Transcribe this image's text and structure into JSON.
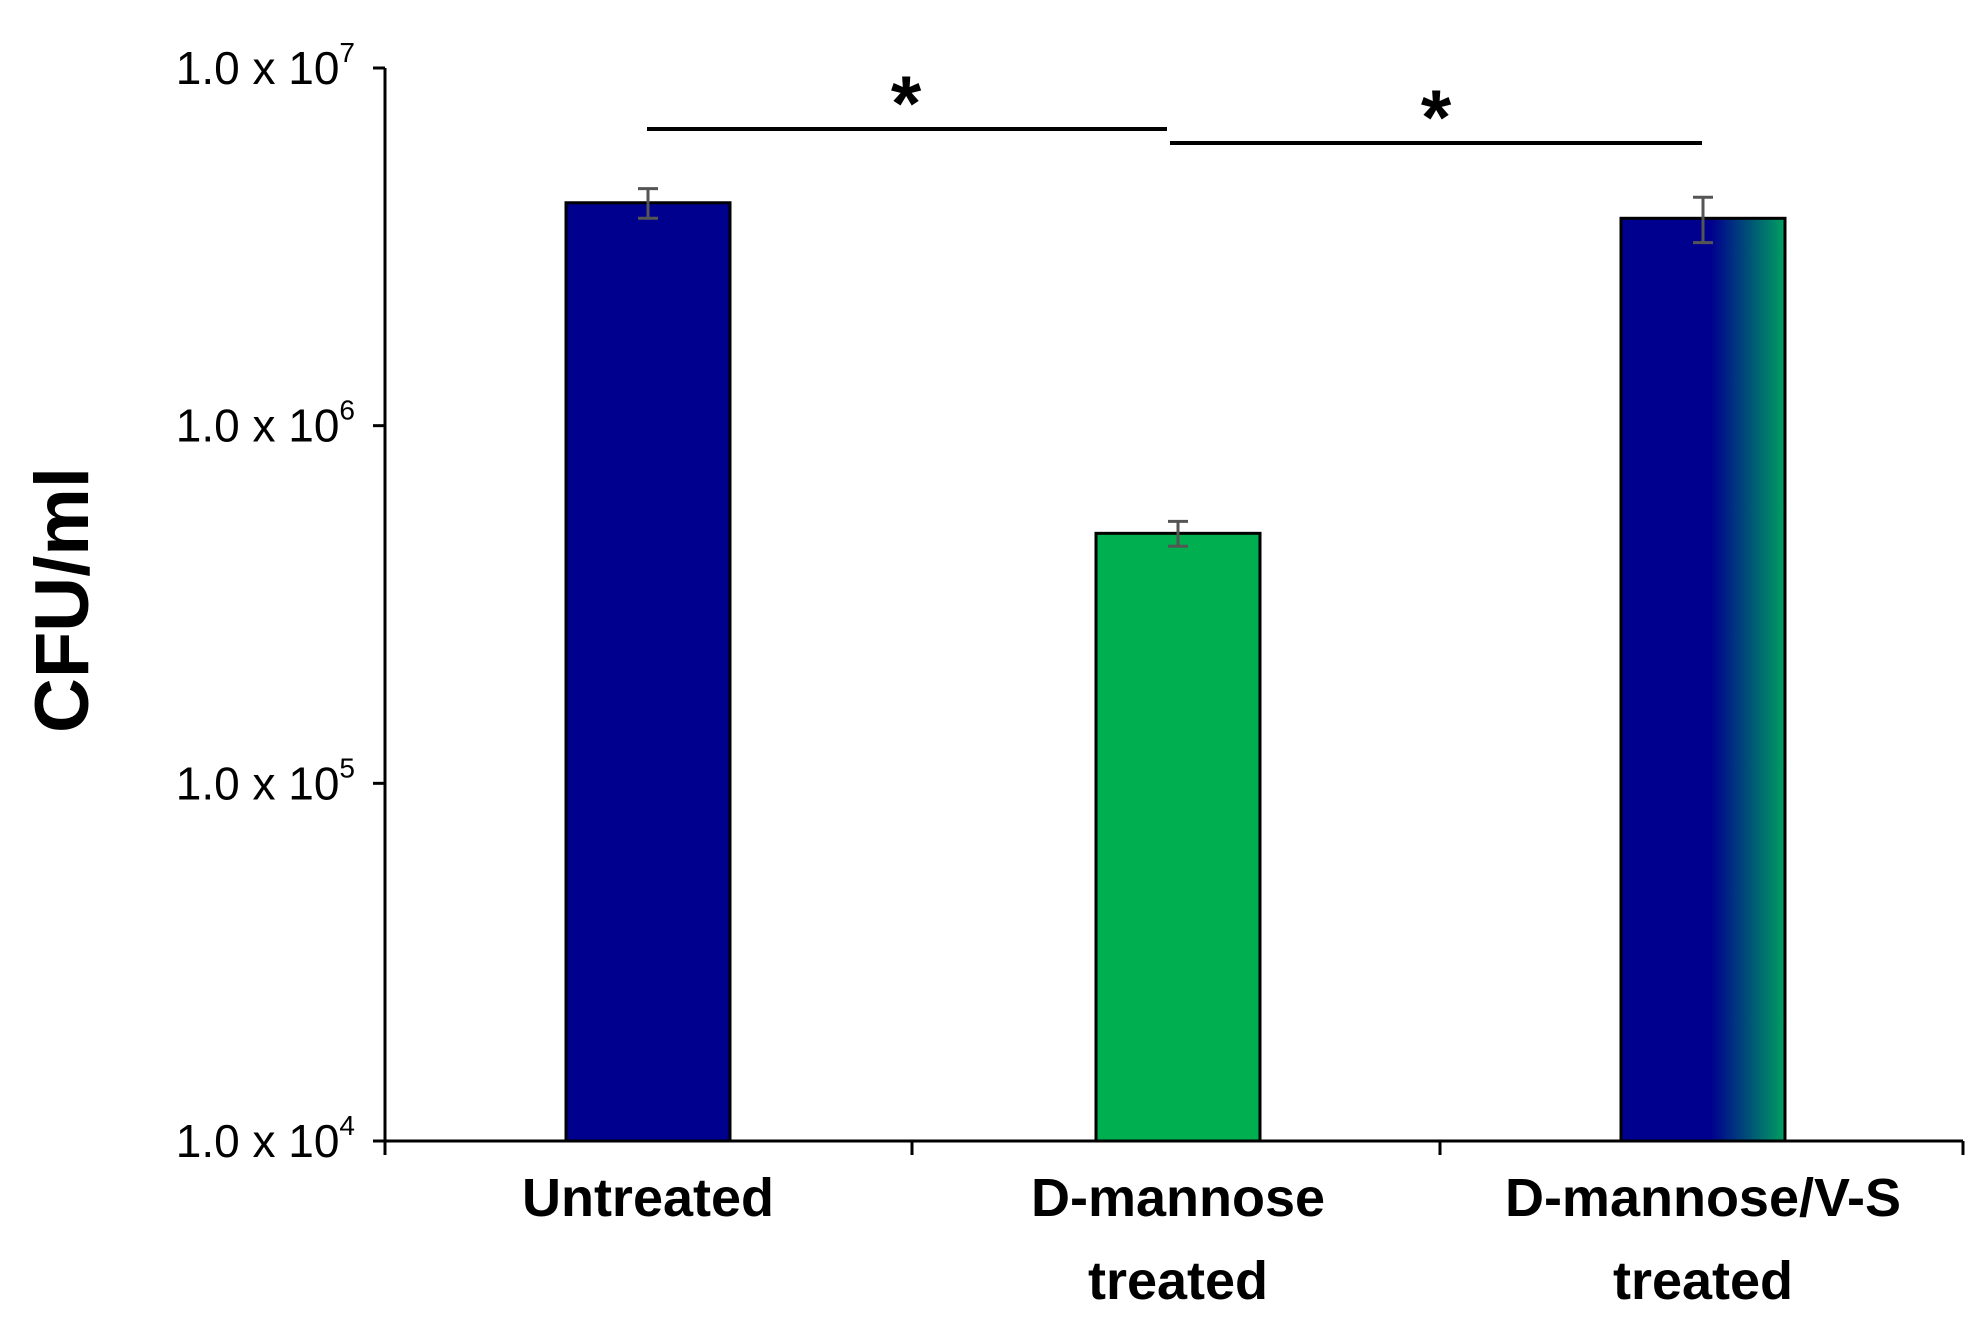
{
  "chart_data": {
    "type": "bar",
    "yscale": "log",
    "ylabel": "CFU/ml",
    "ylim": [
      10000,
      10000000
    ],
    "yticks": [
      {
        "value": 10000,
        "mantissa": "1.0 x 10",
        "exponent": "4"
      },
      {
        "value": 100000,
        "mantissa": "1.0 x 10",
        "exponent": "5"
      },
      {
        "value": 1000000,
        "mantissa": "1.0 x 10",
        "exponent": "6"
      },
      {
        "value": 10000000,
        "mantissa": "1.0 x 10",
        "exponent": "7"
      }
    ],
    "categories": [
      {
        "lines": [
          "Untreated"
        ]
      },
      {
        "lines": [
          "D-mannose",
          "treated"
        ]
      },
      {
        "lines": [
          "D-mannose/V-S",
          "treated"
        ]
      }
    ],
    "values": [
      4200000,
      500000,
      3800000
    ],
    "errors": [
      400000,
      40000,
      550000
    ],
    "fills": [
      {
        "type": "solid",
        "color": "#00008f"
      },
      {
        "type": "solid",
        "color": "#00b050"
      },
      {
        "type": "gradient",
        "from": "#00008f",
        "to": "#00a060"
      }
    ],
    "bar_border": "#000000",
    "error_bar_color": "#555555",
    "significance": [
      {
        "from": 0,
        "to": 1,
        "label": "*"
      },
      {
        "from": 1,
        "to": 2,
        "label": "*"
      }
    ],
    "grid": false,
    "legend": "none"
  }
}
